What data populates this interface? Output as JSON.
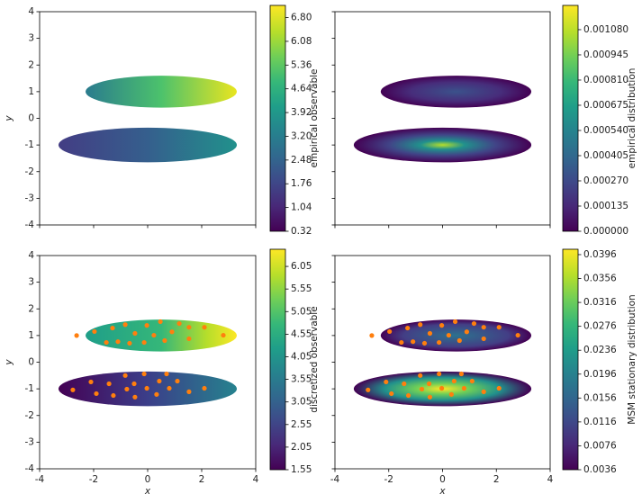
{
  "chart_data": [
    {
      "type": "heatmap",
      "ylabel": "y",
      "xlim": [
        -4,
        4
      ],
      "ylim": [
        -4,
        4
      ],
      "xticks": [
        -4,
        -2,
        0,
        2,
        4
      ],
      "yticks": [
        -4,
        -3,
        -2,
        -1,
        0,
        1,
        2,
        3,
        4
      ],
      "show_xticklabels": false,
      "show_yticklabels": true,
      "clabel": "empirical observable",
      "clim": [
        0.32,
        7.17
      ],
      "cticks": [
        0.32,
        1.04,
        1.76,
        2.48,
        {
          "value": 3.2,
          "label": "3.20"
        },
        3.92,
        4.64,
        5.36,
        6.08,
        {
          "value": 6.8,
          "label": "6.80"
        }
      ]
    },
    {
      "type": "heatmap",
      "xlim": [
        -4,
        4
      ],
      "ylim": [
        -4,
        4
      ],
      "xticks": [
        -4,
        -2,
        0,
        2,
        4
      ],
      "yticks": [
        -4,
        -3,
        -2,
        -1,
        0,
        1,
        2,
        3,
        4
      ],
      "show_xticklabels": false,
      "show_yticklabels": false,
      "clabel": "empirical distribution",
      "clim": [
        0,
        0.00121
      ],
      "cticks": [
        {
          "value": 0,
          "label": "0.000000"
        },
        0.000135,
        {
          "value": 0.00027,
          "label": "0.000270"
        },
        0.000405,
        {
          "value": 0.00054,
          "label": "0.000540"
        },
        0.000675,
        {
          "value": 0.00081,
          "label": "0.000810"
        },
        0.000945,
        {
          "value": 0.00108,
          "label": "0.001080"
        }
      ]
    },
    {
      "type": "heatmap",
      "xlabel": "x",
      "ylabel": "y",
      "xlim": [
        -4,
        4
      ],
      "ylim": [
        -4,
        4
      ],
      "xticks": [
        -4,
        -2,
        0,
        2,
        4
      ],
      "yticks": [
        -4,
        -3,
        -2,
        -1,
        0,
        1,
        2,
        3,
        4
      ],
      "show_xticklabels": true,
      "show_yticklabels": true,
      "clabel": "discretized observable",
      "clim": [
        1.55,
        6.43
      ],
      "cticks": [
        1.55,
        2.05,
        2.55,
        3.05,
        3.55,
        4.05,
        4.55,
        5.05,
        5.55,
        6.05
      ],
      "centers": {
        "color": "#ff7f0e",
        "x": [
          -2.63,
          -1.97,
          -1.53,
          -1.3,
          -1.1,
          -0.83,
          -0.67,
          -0.47,
          -0.13,
          -0.03,
          0.23,
          0.47,
          0.63,
          0.9,
          1.17,
          1.53,
          1.53,
          2.1,
          2.8,
          -2.77,
          -2.1,
          -1.9,
          -1.43,
          -1.27,
          -0.83,
          -0.77,
          -0.5,
          -0.47,
          -0.13,
          -0.03,
          0.33,
          0.43,
          0.7,
          0.8,
          1.1,
          1.53,
          2.1
        ],
        "y": [
          1.0,
          1.15,
          0.74,
          1.28,
          0.77,
          1.41,
          0.71,
          1.08,
          0.74,
          1.38,
          1.01,
          1.52,
          0.81,
          1.14,
          1.45,
          0.88,
          1.31,
          1.31,
          1.01,
          -1.04,
          -0.74,
          -1.18,
          -0.81,
          -1.25,
          -0.5,
          -1.01,
          -0.81,
          -1.31,
          -0.44,
          -0.98,
          -1.21,
          -0.71,
          -0.44,
          -0.98,
          -0.71,
          -1.11,
          -0.98
        ]
      }
    },
    {
      "type": "heatmap",
      "xlabel": "x",
      "xlim": [
        -4,
        4
      ],
      "ylim": [
        -4,
        4
      ],
      "xticks": [
        -4,
        -2,
        0,
        2,
        4
      ],
      "yticks": [
        -4,
        -3,
        -2,
        -1,
        0,
        1,
        2,
        3,
        4
      ],
      "show_xticklabels": true,
      "show_yticklabels": false,
      "clabel": "MSM stationary distribution",
      "clim": [
        0.0036,
        0.0405
      ],
      "cticks": [
        0.0036,
        0.0076,
        0.0116,
        0.0156,
        0.0196,
        0.0236,
        0.0276,
        0.0316,
        0.0356,
        0.0396
      ],
      "centers": {
        "color": "#ff7f0e",
        "x": [
          -2.63,
          -1.97,
          -1.53,
          -1.3,
          -1.1,
          -0.83,
          -0.67,
          -0.47,
          -0.13,
          -0.03,
          0.23,
          0.47,
          0.63,
          0.9,
          1.17,
          1.53,
          1.53,
          2.1,
          2.8,
          -2.77,
          -2.1,
          -1.9,
          -1.43,
          -1.27,
          -0.83,
          -0.77,
          -0.5,
          -0.47,
          -0.13,
          -0.03,
          0.33,
          0.43,
          0.7,
          0.8,
          1.1,
          1.53,
          2.1
        ],
        "y": [
          1.0,
          1.15,
          0.74,
          1.28,
          0.77,
          1.41,
          0.71,
          1.08,
          0.74,
          1.38,
          1.01,
          1.52,
          0.81,
          1.14,
          1.45,
          0.88,
          1.31,
          1.31,
          1.01,
          -1.04,
          -0.74,
          -1.18,
          -0.81,
          -1.25,
          -0.5,
          -1.01,
          -0.81,
          -1.31,
          -0.44,
          -0.98,
          -1.21,
          -0.71,
          -0.44,
          -0.98,
          -0.71,
          -1.11,
          -0.98
        ]
      }
    }
  ]
}
